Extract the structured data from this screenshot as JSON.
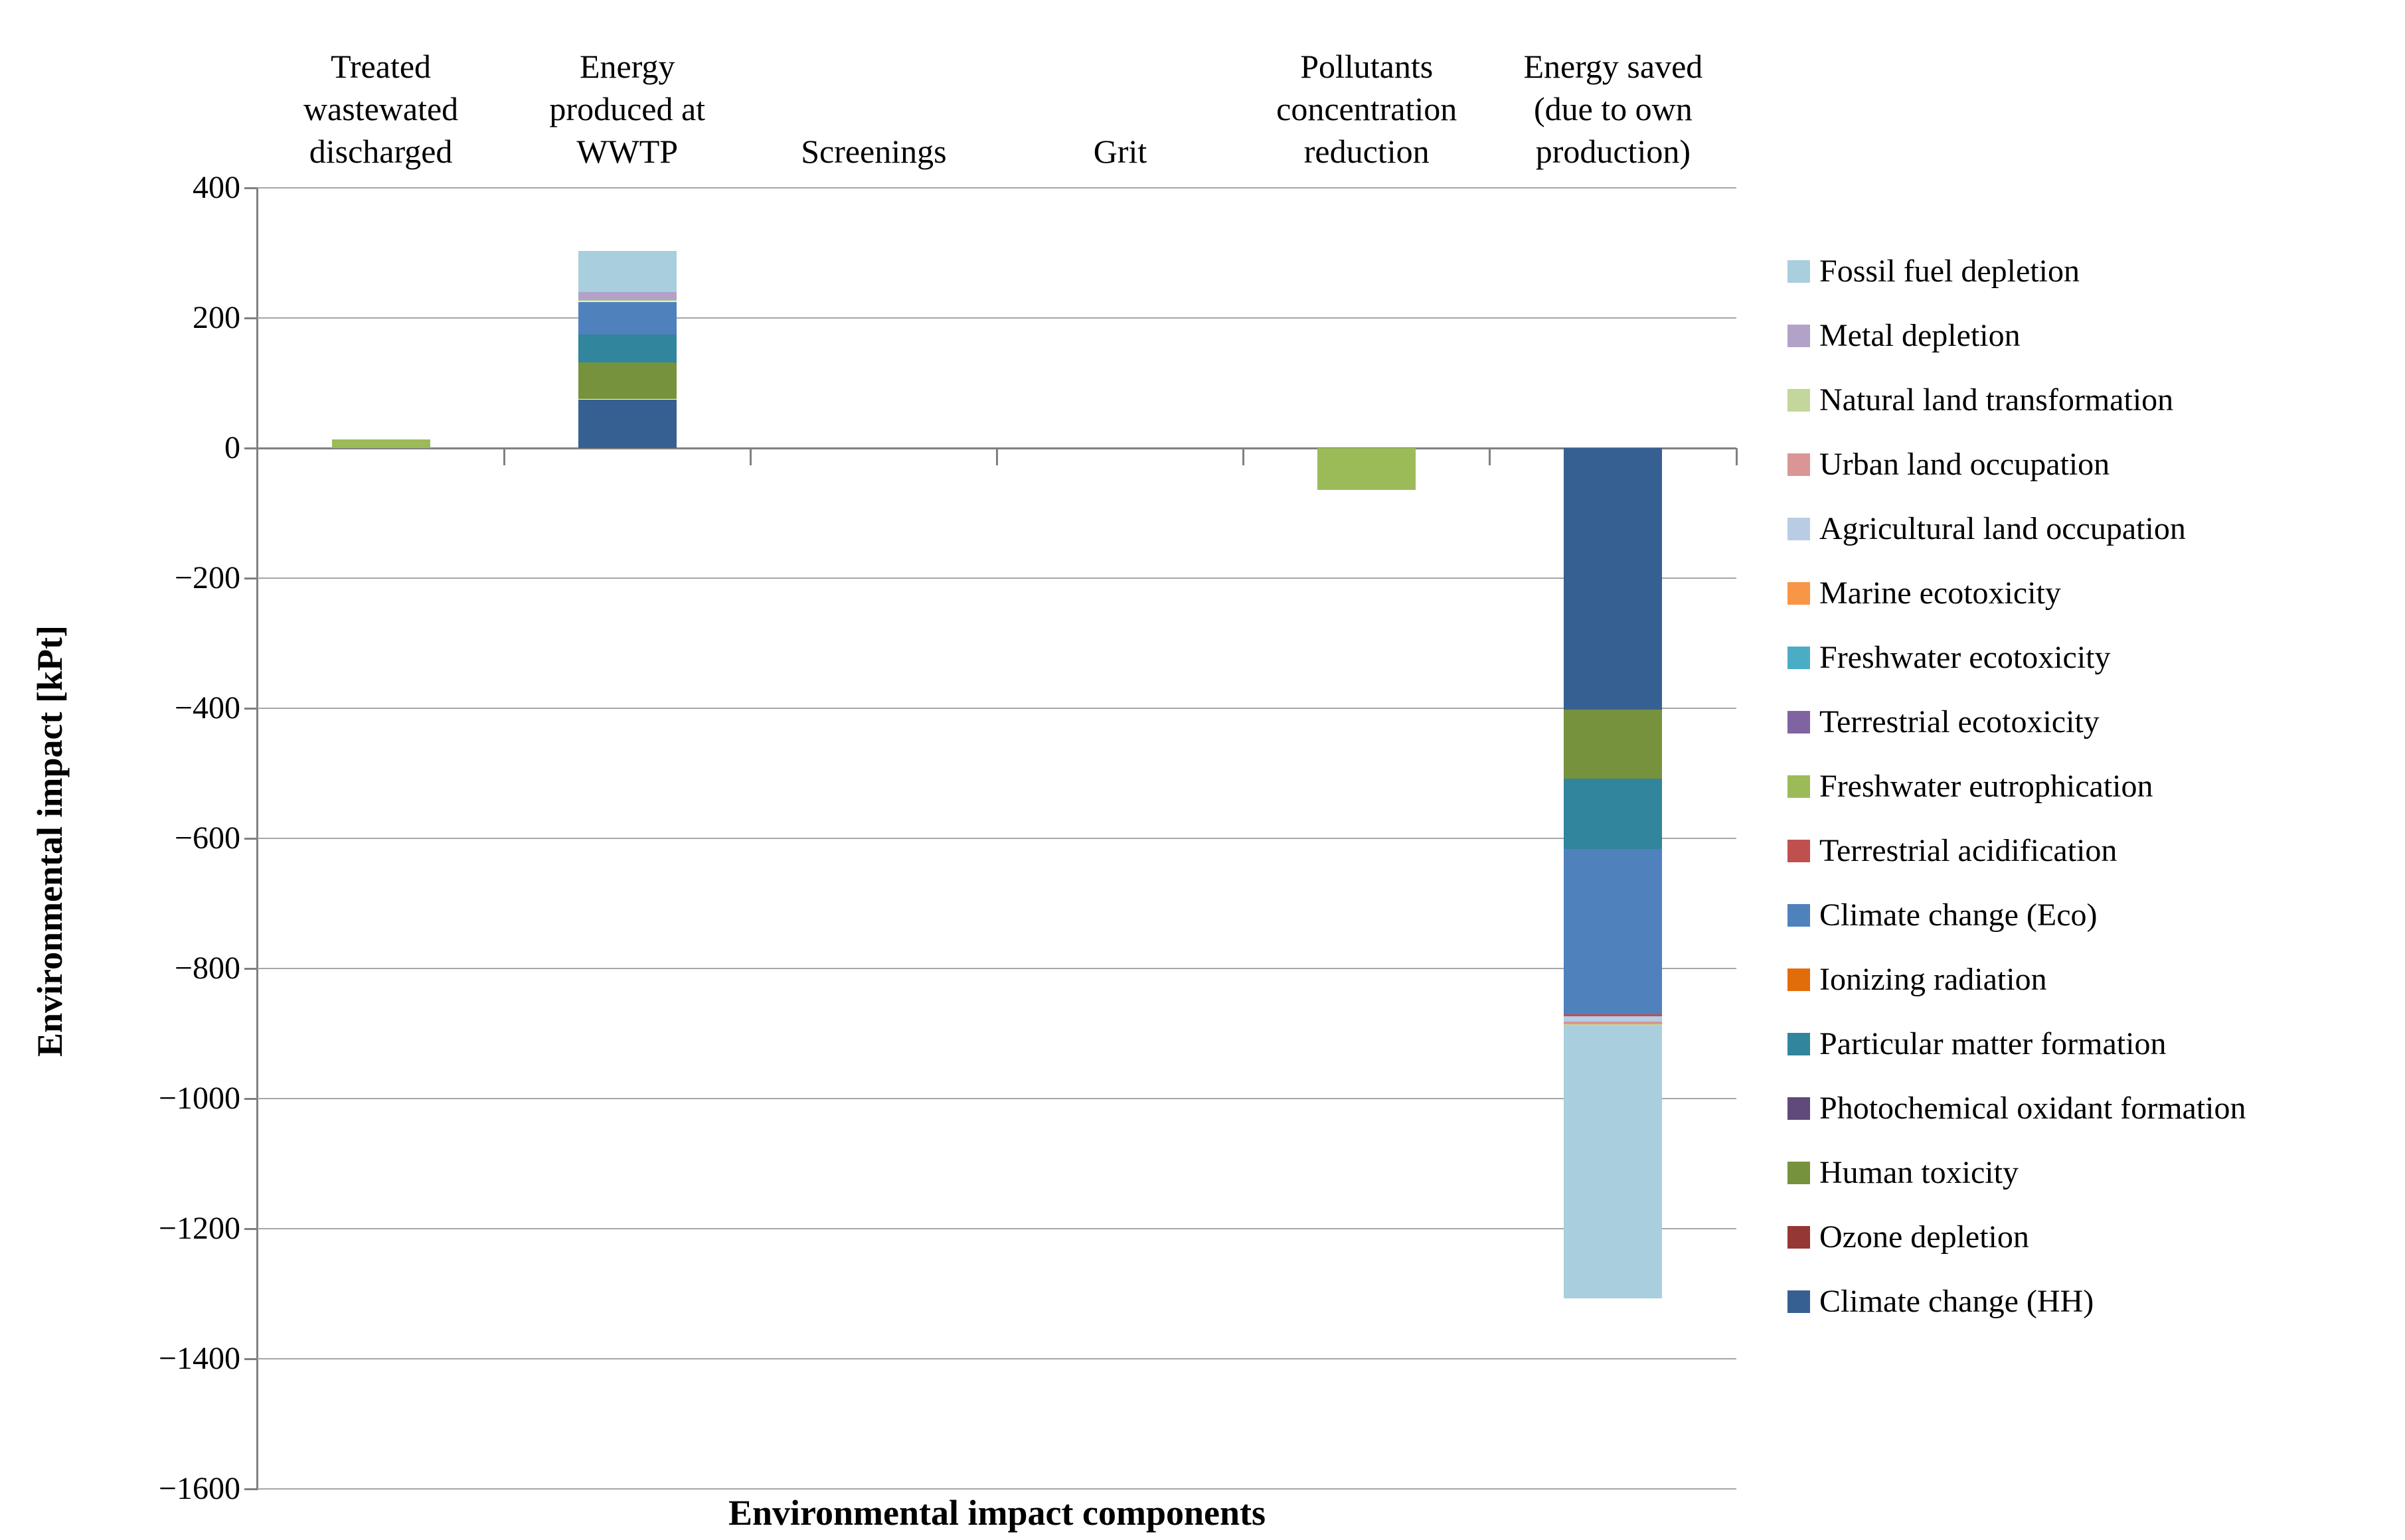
{
  "chart_data": {
    "type": "bar",
    "stacked": true,
    "title": "",
    "xlabel": "Environmental impact components",
    "ylabel": "Environmental impact [kPt]",
    "ylim": [
      -1600,
      400
    ],
    "ytick_step": 200,
    "ytick_values": [
      400,
      200,
      0,
      -200,
      -400,
      -600,
      -800,
      -1000,
      -1200,
      -1400,
      -1600
    ],
    "ytick_labels": [
      "400",
      "200",
      "0",
      "−200",
      "−400",
      "−600",
      "−800",
      "−1000",
      "−1200",
      "−1400",
      "−1600"
    ],
    "grid": "horizontal",
    "legend_position": "right",
    "categories": [
      "Treated wastewated discharged",
      "Energy produced at WWTP",
      "Screenings",
      "Grit",
      "Pollutants concentration reduction",
      "Energy saved (due to own production)"
    ],
    "series": [
      {
        "name": "Climate change (HH)",
        "color": "#376092",
        "values": [
          0,
          75,
          0,
          0,
          0,
          -402
        ]
      },
      {
        "name": "Ozone depletion",
        "color": "#953735",
        "values": [
          0,
          0,
          0,
          0,
          0,
          0
        ]
      },
      {
        "name": "Human toxicity",
        "color": "#76923C",
        "values": [
          0,
          57,
          0,
          0,
          0,
          -106
        ]
      },
      {
        "name": "Photochemical oxidant formation",
        "color": "#60497B",
        "values": [
          0,
          0,
          0,
          0,
          0,
          0
        ]
      },
      {
        "name": "Particular matter formation",
        "color": "#31859C",
        "values": [
          0,
          43,
          0,
          0,
          0,
          -108
        ]
      },
      {
        "name": "Ionizing radiation",
        "color": "#E36C0A",
        "values": [
          0,
          0,
          0,
          0,
          0,
          0
        ]
      },
      {
        "name": "Climate change (Eco)",
        "color": "#4F81BD",
        "values": [
          0,
          50,
          0,
          0,
          0,
          -254
        ]
      },
      {
        "name": "Terrestrial acidification",
        "color": "#C0504D",
        "values": [
          0,
          0,
          0,
          0,
          0,
          -3
        ]
      },
      {
        "name": "Freshwater eutrophication",
        "color": "#9BBB59",
        "values": [
          13,
          0,
          0,
          0,
          -64,
          0
        ]
      },
      {
        "name": "Terrestrial ecotoxicity",
        "color": "#8064A2",
        "values": [
          0,
          0,
          0,
          0,
          0,
          0
        ]
      },
      {
        "name": "Freshwater ecotoxicity",
        "color": "#4BACC6",
        "values": [
          0,
          0,
          0,
          0,
          0,
          0
        ]
      },
      {
        "name": "Marine ecotoxicity",
        "color": "#F79646",
        "values": [
          0,
          0,
          0,
          0,
          0,
          0
        ]
      },
      {
        "name": "Agricultural land occupation",
        "color": "#B8CCE4",
        "values": [
          0,
          0,
          0,
          0,
          0,
          -9
        ]
      },
      {
        "name": "Urban land occupation",
        "color": "#D99694",
        "values": [
          0,
          0,
          0,
          0,
          0,
          -4
        ]
      },
      {
        "name": "Natural land transformation",
        "color": "#C3D69B",
        "values": [
          0,
          3,
          0,
          0,
          0,
          -2
        ]
      },
      {
        "name": "Metal depletion",
        "color": "#B2A2C7",
        "values": [
          0,
          12,
          0,
          0,
          0,
          0
        ]
      },
      {
        "name": "Fossil fuel depletion",
        "color": "#A9CEDE",
        "values": [
          0,
          63,
          0,
          0,
          0,
          -419
        ]
      }
    ],
    "legend_order": [
      "Fossil fuel depletion",
      "Metal depletion",
      "Natural land transformation",
      "Urban land occupation",
      "Agricultural land occupation",
      "Marine ecotoxicity",
      "Freshwater ecotoxicity",
      "Terrestrial ecotoxicity",
      "Freshwater eutrophication",
      "Terrestrial acidification",
      "Climate change (Eco)",
      "Ionizing radiation",
      "Particular matter formation",
      "Photochemical oxidant formation",
      "Human toxicity",
      "Ozone depletion",
      "Climate change (HH)"
    ]
  },
  "colors": {
    "gridline": "#A6A6A6",
    "axis": "#808080",
    "text": "#000000",
    "background": "#FFFFFF"
  }
}
